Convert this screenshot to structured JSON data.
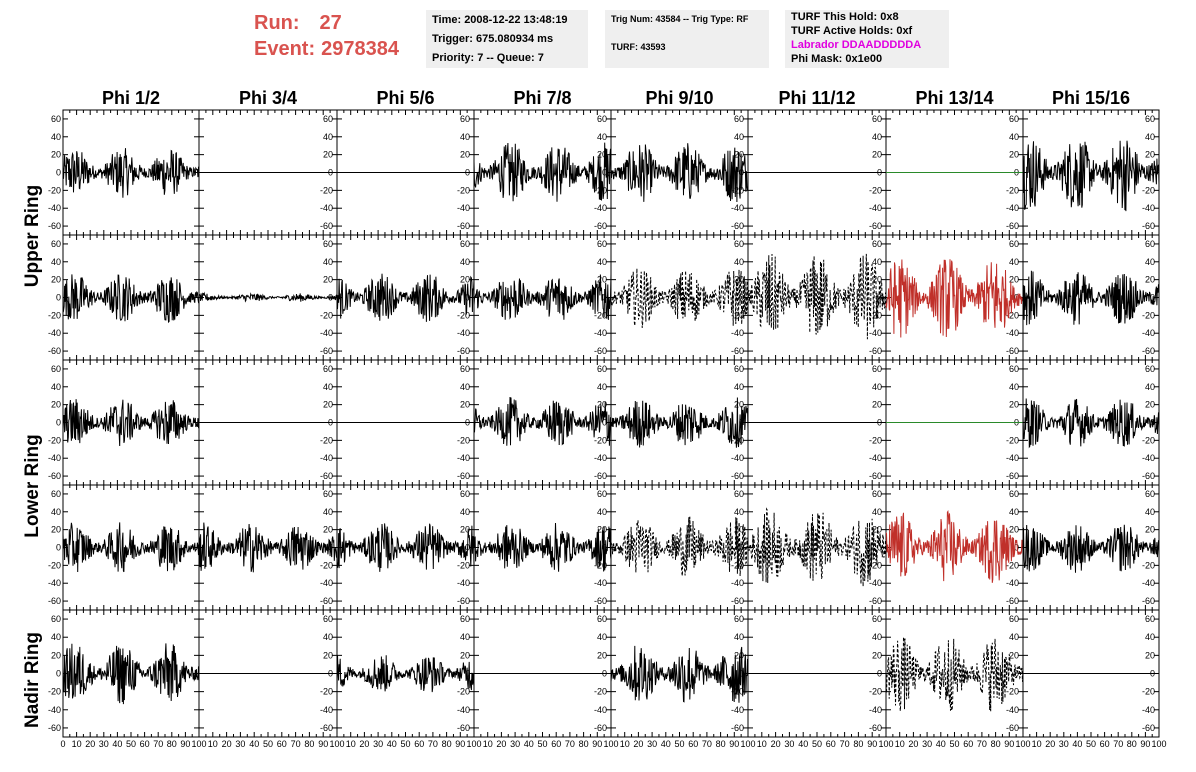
{
  "header": {
    "run_label": "Run:",
    "run_value": "27",
    "event_label": "Event:",
    "event_value": "2978384",
    "time": "Time: 2008-12-22 13:48:19",
    "trigger": "Trigger: 675.080934 ms",
    "priority": "Priority: 7 -- Queue: 7",
    "trig_num": "Trig Num: 43584 -- Trig Type: RF",
    "turf": "TURF: 43593",
    "turf_this_hold": "TURF This Hold: 0x8",
    "turf_active_holds": "TURF Active Holds: 0xf",
    "labrador": "Labrador DDAADDDDDA",
    "phi_mask": "Phi Mask: 0x1e00"
  },
  "colors": {
    "header_red": "#d9534f",
    "magenta": "#e000e0",
    "masked": "#c0302a",
    "flat_green": "#2a8a2a",
    "info_bg": "#efefef"
  },
  "chart_data": {
    "type": "line",
    "columns": [
      "Phi 1/2",
      "Phi 3/4",
      "Phi 5/6",
      "Phi 7/8",
      "Phi 9/10",
      "Phi 11/12",
      "Phi 13/14",
      "Phi 15/16"
    ],
    "ring_labels": [
      "Upper Ring",
      "Lower Ring",
      "Nadir Ring"
    ],
    "ylim": [
      -70,
      70
    ],
    "yticks": [
      -60,
      -40,
      -20,
      0,
      20,
      40,
      60
    ],
    "xlim": [
      0,
      100
    ],
    "xticks": [
      0,
      10,
      20,
      30,
      40,
      50,
      60,
      70,
      80,
      90,
      100
    ],
    "grid": false,
    "rows": [
      {
        "ring": "Upper Ring",
        "panels": [
          {
            "style": "solid",
            "amp": 18
          },
          {
            "style": "flat",
            "amp": 0
          },
          {
            "style": "flat",
            "amp": 0
          },
          {
            "style": "solid",
            "amp": 22
          },
          {
            "style": "solid",
            "amp": 22
          },
          {
            "style": "flat",
            "amp": 0
          },
          {
            "style": "flat-green",
            "amp": 0
          },
          {
            "style": "solid",
            "amp": 28
          }
        ]
      },
      {
        "ring": "Upper Ring",
        "panels": [
          {
            "style": "solid",
            "amp": 18
          },
          {
            "style": "solid",
            "amp": 3
          },
          {
            "style": "solid",
            "amp": 18
          },
          {
            "style": "solid",
            "amp": 18
          },
          {
            "style": "dashed",
            "amp": 22
          },
          {
            "style": "dashed",
            "amp": 32
          },
          {
            "style": "masked",
            "amp": 30
          },
          {
            "style": "solid",
            "amp": 20
          }
        ]
      },
      {
        "ring": "Lower Ring",
        "panels": [
          {
            "style": "solid",
            "amp": 18
          },
          {
            "style": "flat",
            "amp": 0
          },
          {
            "style": "flat",
            "amp": 0
          },
          {
            "style": "solid",
            "amp": 18
          },
          {
            "style": "solid",
            "amp": 18
          },
          {
            "style": "flat",
            "amp": 0
          },
          {
            "style": "flat-green",
            "amp": 0
          },
          {
            "style": "solid",
            "amp": 18
          }
        ]
      },
      {
        "ring": "Lower Ring",
        "panels": [
          {
            "style": "solid",
            "amp": 18
          },
          {
            "style": "solid",
            "amp": 18
          },
          {
            "style": "solid",
            "amp": 18
          },
          {
            "style": "solid",
            "amp": 18
          },
          {
            "style": "dashed",
            "amp": 22
          },
          {
            "style": "dashed",
            "amp": 28
          },
          {
            "style": "masked",
            "amp": 26
          },
          {
            "style": "solid",
            "amp": 18
          }
        ]
      },
      {
        "ring": "Nadir Ring",
        "panels": [
          {
            "style": "solid",
            "amp": 22
          },
          {
            "style": "flat",
            "amp": 0
          },
          {
            "style": "solid",
            "amp": 14
          },
          {
            "style": "flat",
            "amp": 0
          },
          {
            "style": "solid",
            "amp": 22
          },
          {
            "style": "flat",
            "amp": 0
          },
          {
            "style": "dashed",
            "amp": 28
          },
          {
            "style": "flat",
            "amp": 0
          }
        ]
      }
    ]
  }
}
